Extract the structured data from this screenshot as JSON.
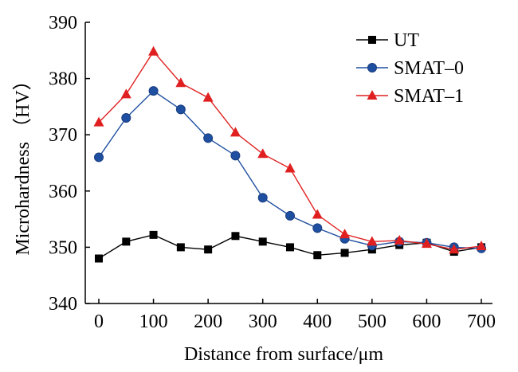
{
  "chart_data": {
    "type": "line",
    "xlabel": "Distance from surface/μm",
    "ylabel": "Microhardness （HV）",
    "xlim": [
      0,
      700
    ],
    "ylim": [
      340,
      390
    ],
    "xticks": [
      0,
      100,
      200,
      300,
      400,
      500,
      600,
      700
    ],
    "yticks": [
      340,
      350,
      360,
      370,
      380,
      390
    ],
    "grid": false,
    "legend_position": "top-right",
    "x": [
      0,
      50,
      100,
      150,
      200,
      250,
      300,
      350,
      400,
      450,
      500,
      550,
      600,
      650,
      700
    ],
    "series": [
      {
        "name": "UT",
        "color": "#000000",
        "marker": "square",
        "values": [
          348.0,
          351.0,
          352.2,
          350.0,
          349.6,
          352.0,
          351.0,
          350.0,
          348.6,
          349.0,
          349.6,
          350.4,
          350.8,
          349.2,
          350.0
        ]
      },
      {
        "name": "SMAT–0",
        "color": "#1f4fa0",
        "marker": "circle",
        "values": [
          366.0,
          373.0,
          377.8,
          374.5,
          369.4,
          366.3,
          358.8,
          355.6,
          353.4,
          351.5,
          350.3,
          351.0,
          350.8,
          350.0,
          349.8
        ]
      },
      {
        "name": "SMAT–1",
        "color": "#e02020",
        "marker": "triangle",
        "values": [
          372.2,
          377.2,
          384.8,
          379.2,
          376.6,
          370.4,
          366.6,
          364.0,
          355.8,
          352.3,
          351.0,
          351.2,
          350.6,
          349.6,
          350.2
        ]
      }
    ]
  }
}
